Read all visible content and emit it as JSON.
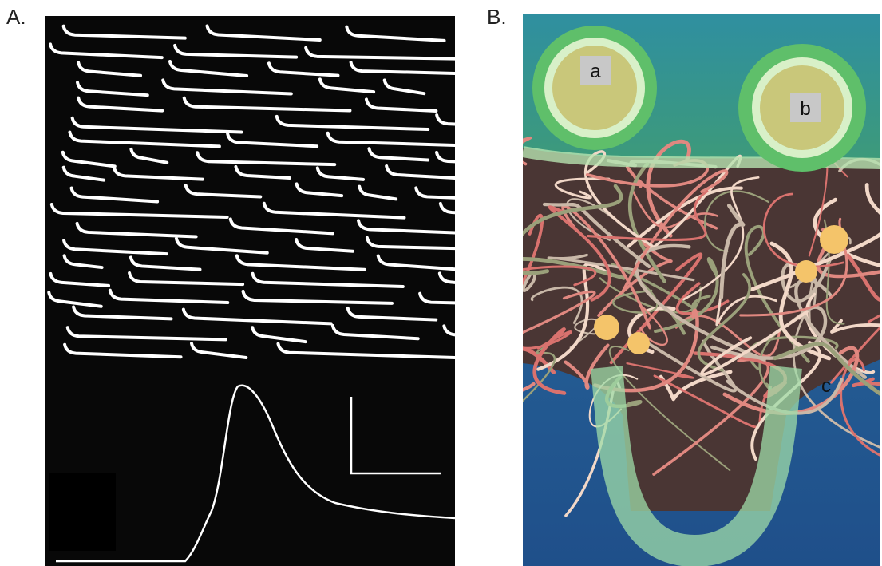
{
  "panels": [
    {
      "label": "A."
    },
    {
      "label": "B.",
      "insets": [
        {
          "label": "a"
        },
        {
          "label": "b"
        },
        {
          "label": "c"
        }
      ]
    }
  ]
}
